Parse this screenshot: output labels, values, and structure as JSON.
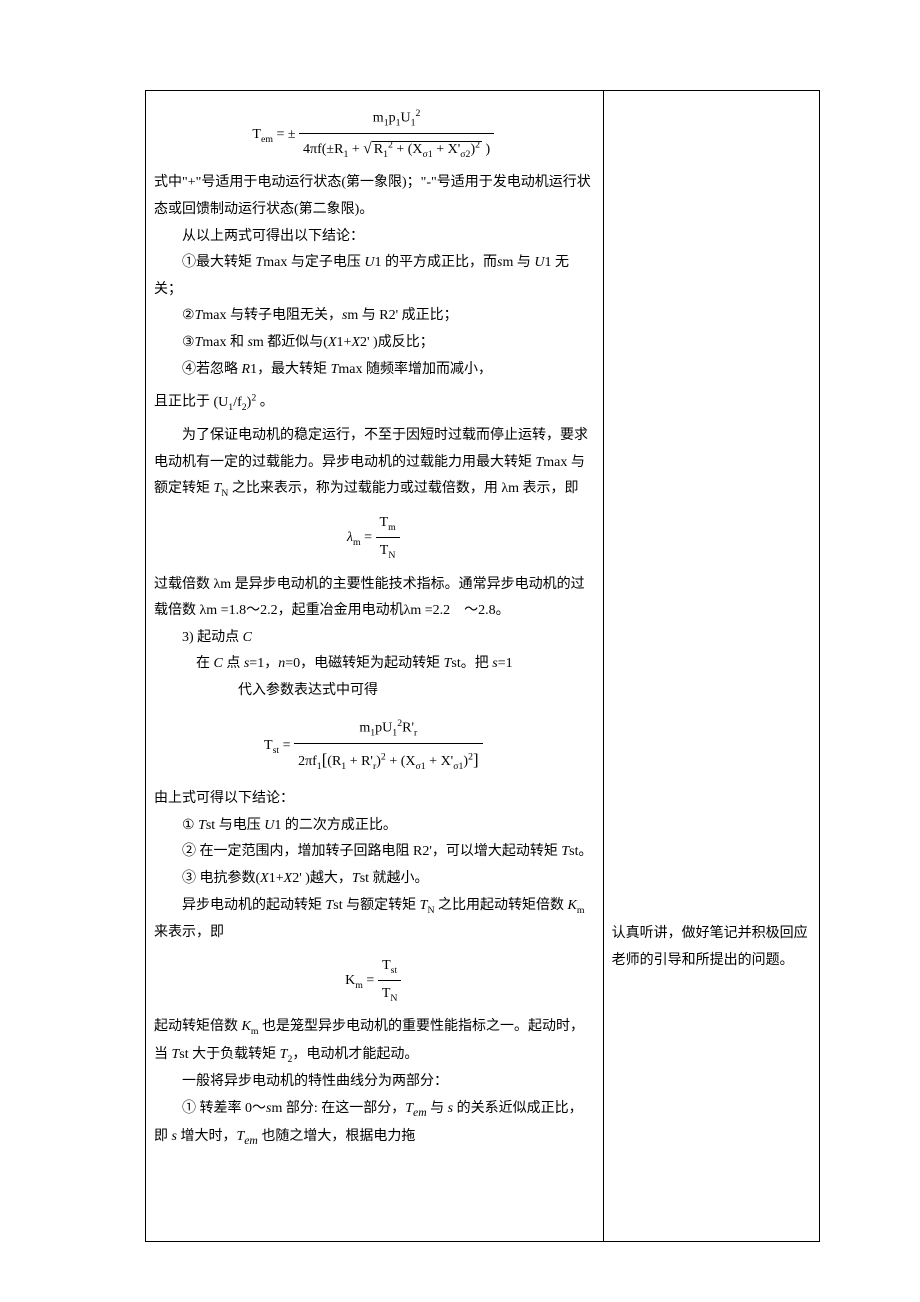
{
  "left": {
    "f1": {
      "lhs": "T<sub>em</sub> = ±",
      "num": "m<sub>1</sub>p<sub>1</sub>U<sub>1</sub><sup>2</sup>",
      "den": "4πf(±R<sub>1</sub> + √(R<sub>1</sub><sup>2</sup> + (X<sub>σ1</sub> + X'<sub>σ2</sub>)<sup>2</sup> ))"
    },
    "p1": "式中\"+\"号适用于电动运行状态(第一象限)；\"-\"号适用于发电动机运行状态或回馈制动运行状态(第二象限)。",
    "p2": "从以上两式可得出以下结论：",
    "p3": "①最大转矩 Tmax 与定子电压 U1 的平方成正比，而 sm 与 U1 无关；",
    "p4": "②Tmax 与转子电阻无关，sm 与 R2' 成正比；",
    "p5": "③Tmax 和 sm 都近似与(X1+X2' )成反比；",
    "p6": "④若忽略 R1，最大转矩 Tmax 随频率增加而减小，",
    "p7_a": "且正比于",
    "p7_b": "(U<sub>1</sub>/f<sub>2</sub>)<sup>2</sup>",
    "p7_c": "。",
    "p8": "为了保证电动机的稳定运行，不至于因短时过载而停止运转，要求电动机有一定的过载能力。异步电动机的过载能力用最大转矩 Tmax 与额定转矩 T<sub>N</sub> 之比来表示，称为过载能力或过载倍数，用 λm 表示，即",
    "f2": {
      "lhs": "λ<sub>m</sub> =",
      "num": "T<sub>m</sub>",
      "den": "T<sub>N</sub>"
    },
    "p9": "过载倍数 λm 是异步电动机的主要性能技术指标。通常异步电动机的过载倍数 λm =1.8～2.2，起重冶金用电动机λm =2.2　～2.8。",
    "p10": "3) 起动点 C",
    "p11": "在 C 点 s=1，n=0，电磁转矩为起动转矩 Tst。把 s=1代入参数表达式中可得",
    "f3": {
      "lhs": "T<sub>st</sub> =",
      "num": "m<sub>1</sub>pU<sub>1</sub><sup>2</sup>R'<sub>r</sub>",
      "den": "2πf<sub>1</sub>[(R<sub>1</sub> + R'<sub>r</sub>)<sup>2</sup> + (X<sub>σ1</sub> + X'<sub>σ1</sub>)<sup>2</sup>]"
    },
    "p12": "由上式可得以下结论：",
    "p13": "① Tst 与电压 U1 的二次方成正比。",
    "p14": "② 在一定范围内，增加转子回路电阻 R2'，可以增大起动转矩 Tst。",
    "p15": "③ 电抗参数(X1+X2' )越大，Tst 就越小。",
    "p16": "异步电动机的起动转矩 Tst 与额定转矩 T<sub>N</sub> 之比用起动转矩倍数 K<sub>m</sub> 来表示，即",
    "f4": {
      "lhs": "K<sub>m</sub> =",
      "num": "T<sub>st</sub>",
      "den": "T<sub>N</sub>"
    },
    "p17": "起动转矩倍数 K<sub>m</sub> 也是笼型异步电动机的重要性能指标之一。起动时，当 Tst 大于负载转矩 T<sub>2</sub>，电动机才能起动。",
    "p18": "一般将异步电动机的特性曲线分为两部分：",
    "p19": "① 转差率 0～sm 部分: 在这一部分，T<sub>em</sub> 与 s 的关系近似成正比，即 s 增大时，T<sub>em</sub> 也随之增大，根据电力拖"
  },
  "right": {
    "note": "认真听讲，做好笔记并积极回应老师的引导和所提出的问题。"
  },
  "style": {
    "text_color": "#000000",
    "bg_color": "#ffffff",
    "border_color": "#000000",
    "font_size_pt": 10.5,
    "formula_font": "Times New Roman",
    "body_font": "SimSun"
  }
}
